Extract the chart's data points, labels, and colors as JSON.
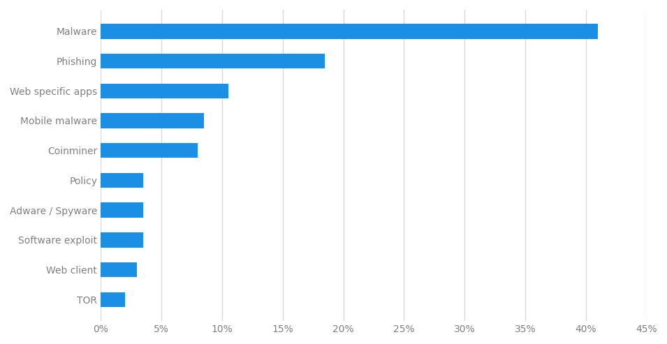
{
  "categories": [
    "Malware",
    "Phishing",
    "Web specific apps",
    "Mobile malware",
    "Coinminer",
    "Policy",
    "Adware / Spyware",
    "Software exploit",
    "Web client",
    "TOR"
  ],
  "values": [
    41,
    18.5,
    10.5,
    8.5,
    8,
    3.5,
    3.5,
    3.5,
    3,
    2
  ],
  "bar_color": "#1a8fe3",
  "background_color": "#ffffff",
  "xlim": [
    0,
    45
  ],
  "xtick_values": [
    0,
    5,
    10,
    15,
    20,
    25,
    30,
    35,
    40,
    45
  ],
  "bar_height": 0.5,
  "figsize": [
    9.55,
    4.93
  ],
  "dpi": 100,
  "grid_color": "#d9d9d9",
  "label_color": "#808080",
  "label_fontsize": 10
}
